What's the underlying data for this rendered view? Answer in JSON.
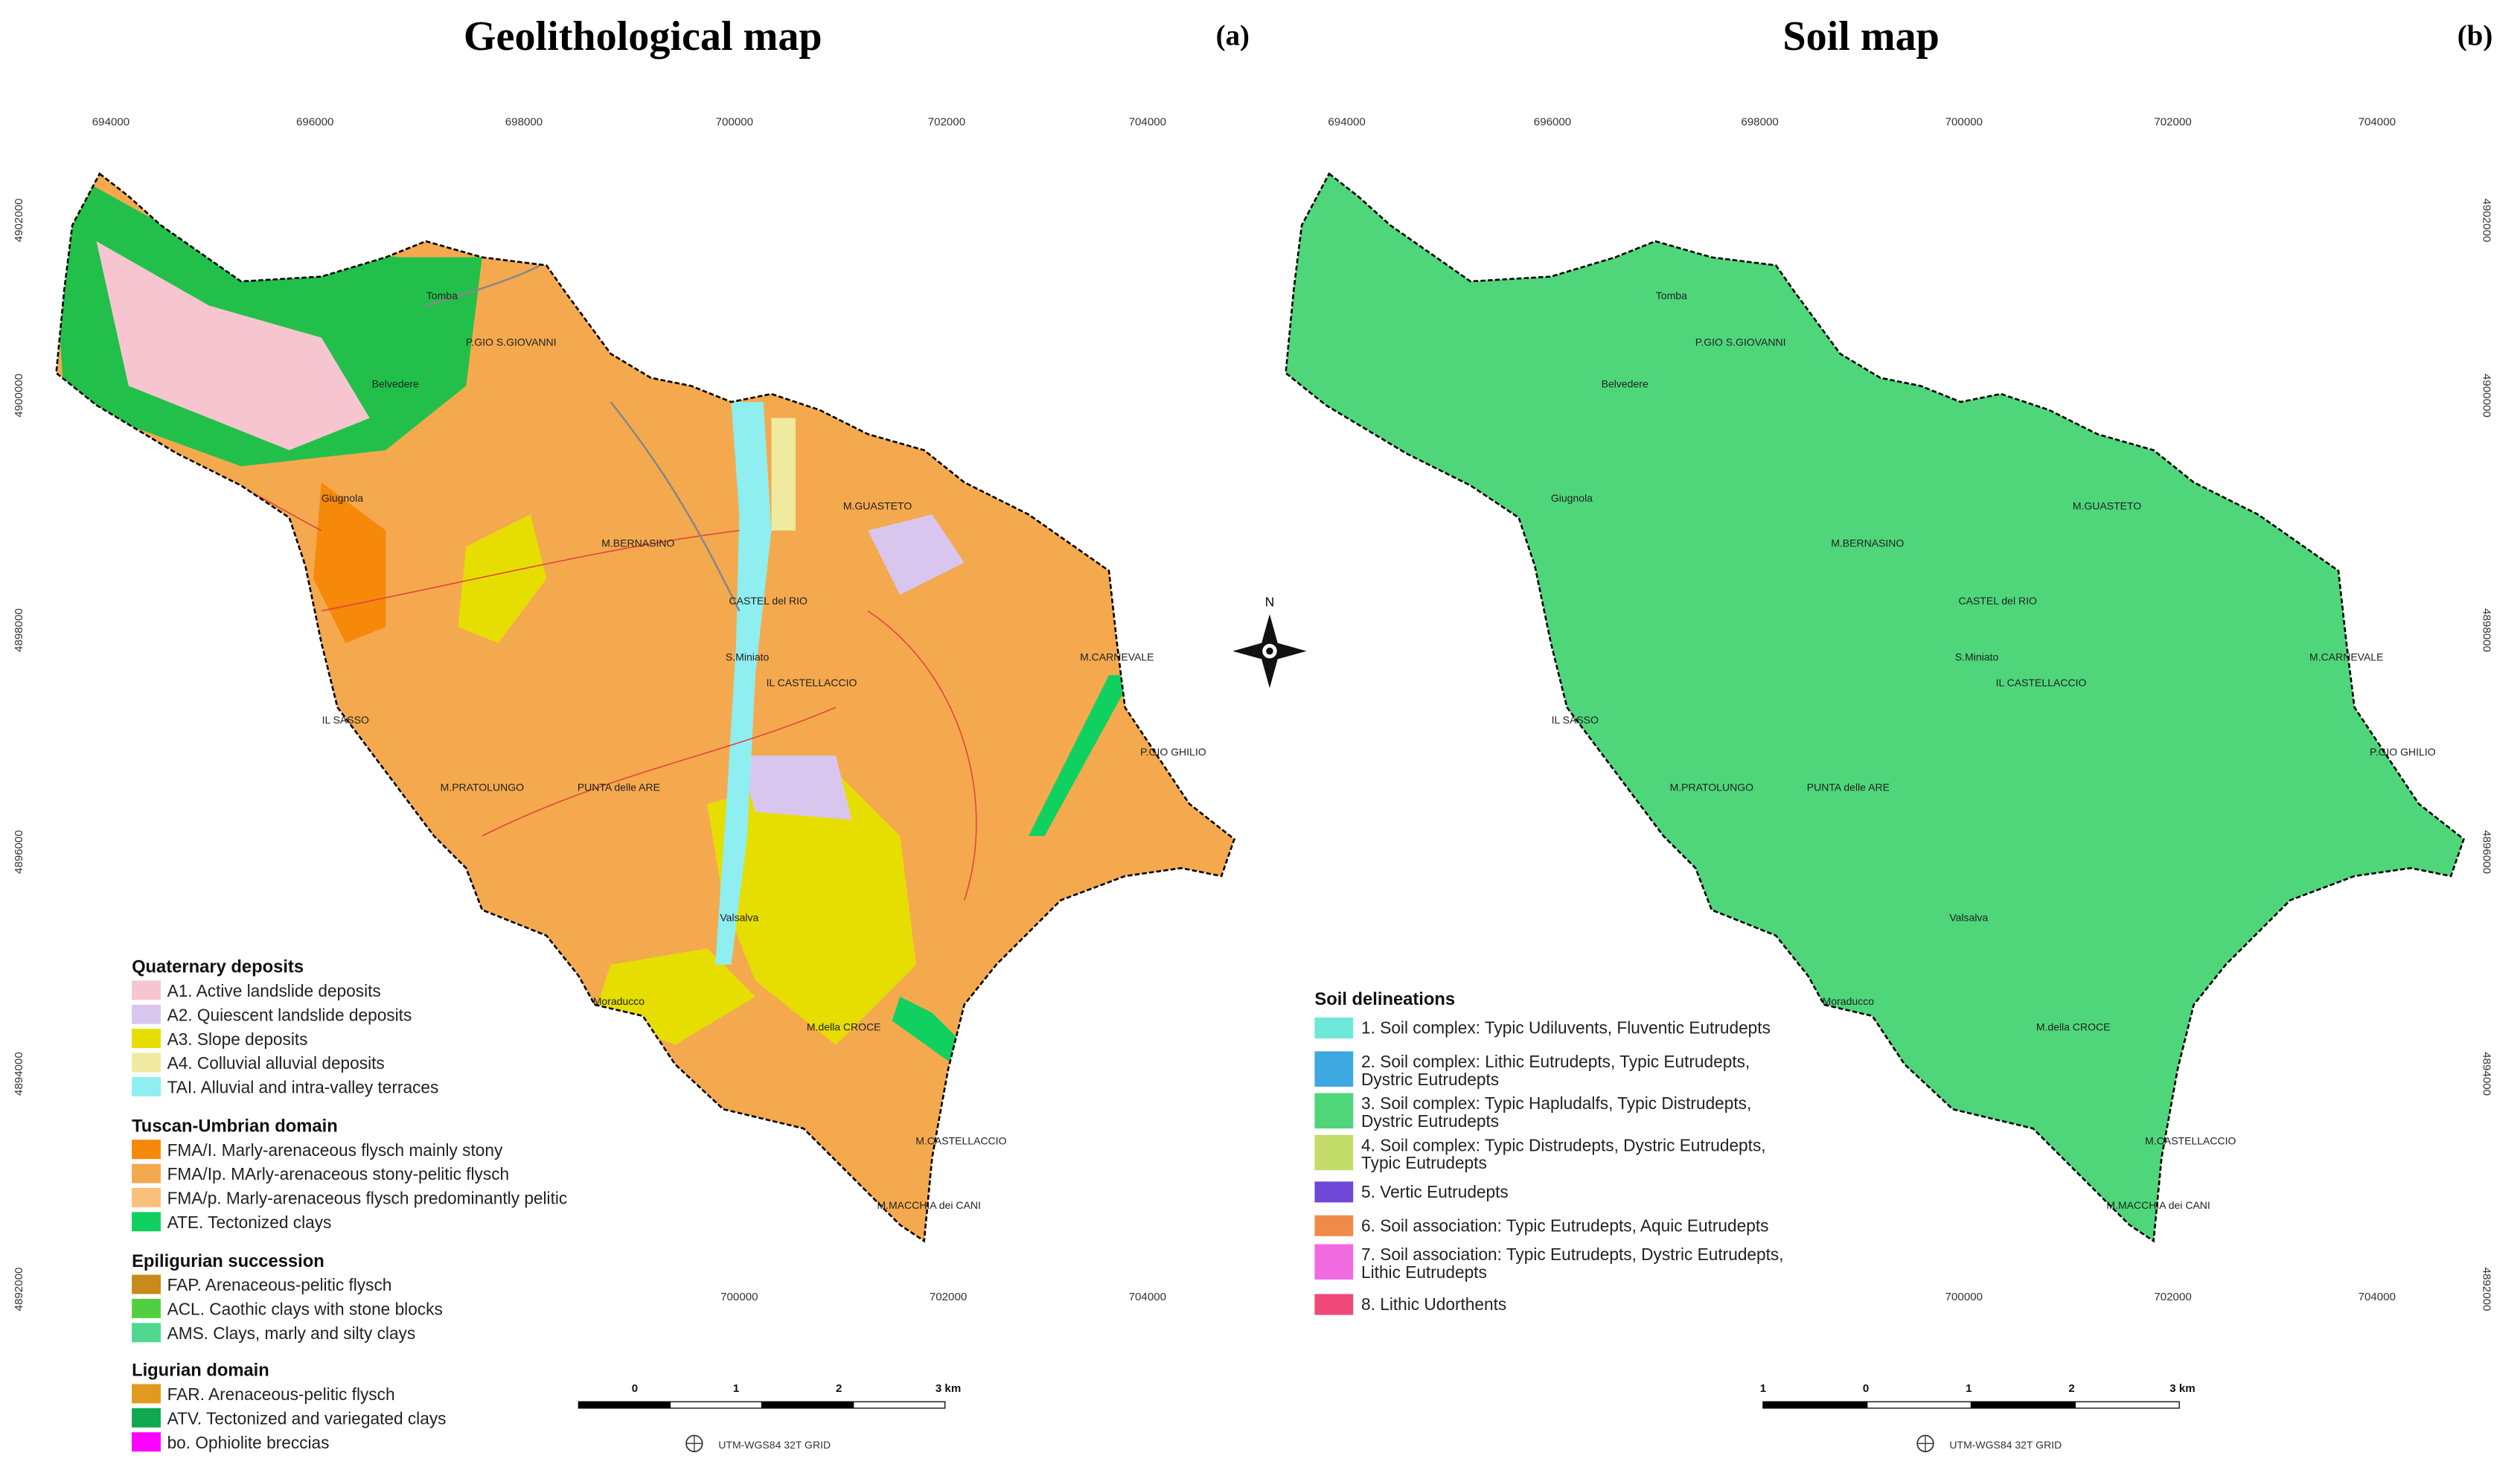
{
  "compass": "N",
  "places": [
    "Tomba",
    "P.GIO S.GIOVANNI",
    "Belvedere",
    "Giugnola",
    "M.BERNASINO",
    "CASTEL del RIO",
    "S.Miniato",
    "IL CASTELLACCIO",
    "M.GUASTETO",
    "M.CARNEVALE",
    "P.GIO GHILIO",
    "IL SASSO",
    "M.PRATOLUNGO",
    "PUNTA delle ARE",
    "Valsalva",
    "Moraducco",
    "M.della CROCE",
    "M.CASTELLACCIO",
    "M.MACCHIA dei CANI"
  ],
  "panels": [
    {
      "title": "Geolithological map",
      "label": "(a)",
      "top_ticks": [
        "694000",
        "696000",
        "698000",
        "700000",
        "702000",
        "704000"
      ],
      "side_ticks": [
        "4902000",
        "4900000",
        "4898000",
        "4896000",
        "4894000",
        "4892000"
      ],
      "bottom_ticks": [
        "700000",
        "702000",
        "704000"
      ],
      "scale": [
        "0",
        "1",
        "2",
        "3 km"
      ],
      "grid_label": "UTM-WGS84 32T GRID",
      "legend": [
        {
          "heading": "Quaternary deposits",
          "items": [
            {
              "lines": [
                "A1. Active landslide deposits"
              ],
              "color": "#f7c5cf"
            },
            {
              "lines": [
                "A2. Quiescent landslide deposits"
              ],
              "color": "#d9c6ee"
            },
            {
              "lines": [
                "A3. Slope deposits"
              ],
              "color": "#e6de00"
            },
            {
              "lines": [
                "A4. Colluvial alluvial deposits"
              ],
              "color": "#efeaa0"
            },
            {
              "lines": [
                "TAI. Alluvial and intra-valley terraces"
              ],
              "color": "#8eeef0"
            }
          ]
        },
        {
          "heading": "Tuscan-Umbrian domain",
          "items": [
            {
              "lines": [
                "FMA/I. Marly-arenaceous flysch mainly stony"
              ],
              "color": "#f6880a"
            },
            {
              "lines": [
                "FMA/Ip. MArly-arenaceous stony-pelitic flysch"
              ],
              "color": "#f4a94e"
            },
            {
              "lines": [
                "FMA/p. Marly-arenaceous flysch predominantly pelitic"
              ],
              "color": "#f8c07a"
            },
            {
              "lines": [
                "ATE. Tectonized clays"
              ],
              "color": "#10d060"
            }
          ]
        },
        {
          "heading": "Epiligurian succession",
          "items": [
            {
              "lines": [
                "FAP. Arenaceous-pelitic flysch"
              ],
              "color": "#c88a18"
            },
            {
              "lines": [
                "ACL. Caothic clays with stone blocks"
              ],
              "color": "#50d040"
            },
            {
              "lines": [
                "AMS. Clays, marly and silty clays"
              ],
              "color": "#50d890"
            }
          ]
        },
        {
          "heading": "Ligurian domain",
          "items": [
            {
              "lines": [
                "FAR. Arenaceous-pelitic flysch"
              ],
              "color": "#e09a20"
            },
            {
              "lines": [
                "ATV. Tectonized and variegated clays"
              ],
              "color": "#10a850"
            },
            {
              "lines": [
                "bo. Ophiolite breccias"
              ],
              "color": "#ff00ff"
            }
          ]
        }
      ]
    },
    {
      "title": "Soil map",
      "label": "(b)",
      "top_ticks": [
        "694000",
        "696000",
        "698000",
        "700000",
        "702000",
        "704000"
      ],
      "side_ticks": [
        "4902000",
        "4900000",
        "4898000",
        "4896000",
        "4894000",
        "4892000"
      ],
      "bottom_ticks": [
        "700000",
        "702000",
        "704000"
      ],
      "scale": [
        "1",
        "0",
        "1",
        "2",
        "3 km"
      ],
      "grid_label": "UTM-WGS84 32T GRID",
      "legend": [
        {
          "heading": "Soil delineations",
          "items": [
            {
              "lines": [
                "1. Soil complex: Typic Udiluvents, Fluventic Eutrudepts"
              ],
              "color": "#6ee8d8"
            },
            {
              "lines": [
                "2. Soil complex: Lithic Eutrudepts, Typic Eutrudepts,",
                "Dystric Eutrudepts"
              ],
              "color": "#3ea8e0"
            },
            {
              "lines": [
                "3. Soil complex: Typic Hapludalfs, Typic Distrudepts,",
                "Dystric Eutrudepts"
              ],
              "color": "#4fd67a"
            },
            {
              "lines": [
                "4. Soil complex: Typic Distrudepts, Dystric Eutrudepts,",
                "Typic Eutrudepts"
              ],
              "color": "#c4dc6a"
            },
            {
              "lines": [
                "5. Vertic Eutrudepts"
              ],
              "color": "#7048d8"
            },
            {
              "lines": [
                "6. Soil association: Typic Eutrudepts, Aquic Eutrudepts"
              ],
              "color": "#f08a48"
            },
            {
              "lines": [
                "7. Soil association:  Typic Eutrudepts, Dystric Eutrudepts,",
                "Lithic Eutrudepts"
              ],
              "color": "#f06ae0"
            },
            {
              "lines": [
                "8. Lithic Udorthents"
              ],
              "color": "#f04878"
            }
          ]
        }
      ]
    }
  ]
}
